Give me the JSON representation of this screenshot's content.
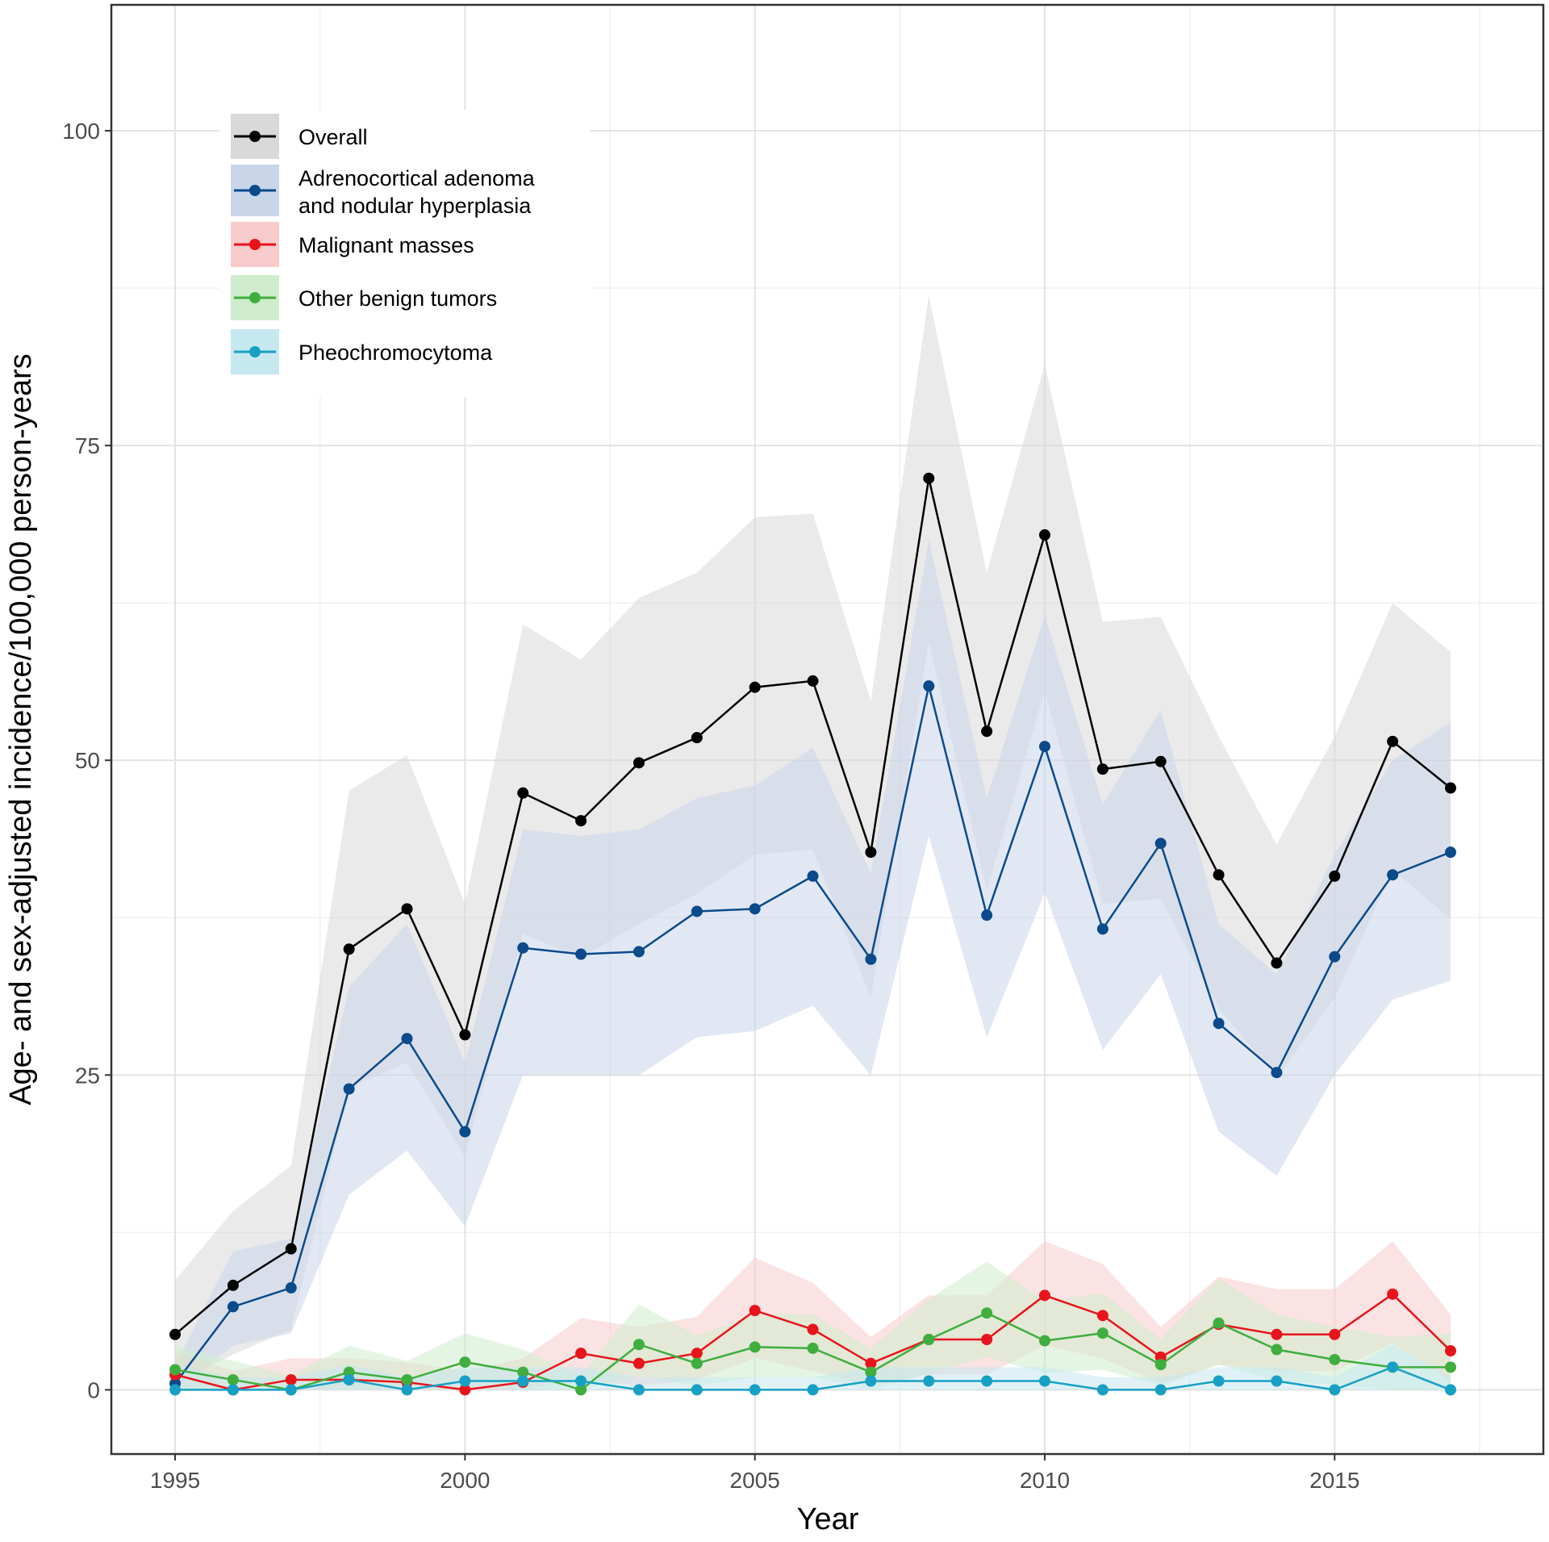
{
  "chart_data": {
    "type": "line",
    "title": "",
    "xlabel": "Year",
    "ylabel": "Age- and sex-adjusted incidence/100,000 person-years",
    "xlim": [
      1993.9,
      2018.6
    ],
    "ylim": [
      -5.1,
      110
    ],
    "xticks": [
      1995,
      2000,
      2005,
      2010,
      2015
    ],
    "yticks": [
      0,
      25,
      50,
      75,
      100
    ],
    "grid": true,
    "legend_position": "top-left",
    "x": [
      1995,
      1996,
      1997,
      1998,
      1999,
      2000,
      2001,
      2002,
      2003,
      2004,
      2005,
      2006,
      2007,
      2008,
      2009,
      2010,
      2011,
      2012,
      2013,
      2014,
      2015,
      2016,
      2017
    ],
    "series": [
      {
        "name": "Overall",
        "color": "#000000",
        "band": "#d9d9d9",
        "values": [
          4.4,
          8.3,
          11.2,
          35.0,
          38.2,
          28.2,
          47.4,
          45.2,
          49.8,
          51.8,
          55.8,
          56.3,
          42.7,
          72.4,
          52.3,
          67.9,
          49.3,
          49.9,
          40.9,
          33.9,
          40.8,
          51.5,
          47.8
        ],
        "lower": [
          0.5,
          2.8,
          4.8,
          24,
          26,
          18.5,
          36.2,
          34.3,
          37,
          39.4,
          42.5,
          42.9,
          31.1,
          59.4,
          39.7,
          55.5,
          38.6,
          39,
          30.3,
          24.8,
          31.1,
          41.3,
          37.4
        ],
        "upper": [
          8.7,
          14.2,
          17.8,
          47.6,
          50.4,
          38.6,
          60.8,
          58,
          62.9,
          64.9,
          69.3,
          69.6,
          54.7,
          86.9,
          64.9,
          81.4,
          61,
          61.4,
          51.9,
          43.3,
          51.9,
          62.5,
          58.6
        ]
      },
      {
        "name": "Adrenocortical adenoma and nodular hyperplasia",
        "legend_lines": [
          "Adrenocortical adenoma",
          "and nodular hyperplasia"
        ],
        "color": "#0b4a8b",
        "band": "#c9d6ea",
        "values": [
          0.5,
          6.6,
          8.1,
          23.9,
          27.9,
          20.5,
          35.1,
          34.6,
          34.8,
          38.0,
          38.2,
          40.8,
          34.2,
          55.9,
          37.7,
          51.1,
          36.6,
          43.4,
          29.1,
          25.2,
          34.4,
          40.9,
          42.7
        ],
        "lower": [
          0,
          3.5,
          4.5,
          15.5,
          19,
          13,
          25,
          25,
          25,
          28,
          28.5,
          30.5,
          25,
          44,
          28,
          39.5,
          27,
          33,
          20.5,
          17,
          25,
          31,
          32.5
        ],
        "upper": [
          2,
          11,
          12,
          32,
          37,
          26,
          44.5,
          44,
          44.5,
          47,
          48,
          51,
          41,
          67.5,
          47,
          61.5,
          46.5,
          54,
          37,
          33,
          42.5,
          50,
          53
        ]
      },
      {
        "name": "Malignant masses",
        "color": "#e8141b",
        "band": "#f8cccc",
        "values": [
          1.2,
          0,
          0.8,
          0.8,
          0.6,
          0,
          0.6,
          2.9,
          2.1,
          2.9,
          6.3,
          4.8,
          2.1,
          4.0,
          4.0,
          7.5,
          5.9,
          2.6,
          5.2,
          4.4,
          4.4,
          7.6,
          3.1
        ],
        "lower": [
          0,
          0,
          0,
          0,
          0,
          0,
          0,
          0.8,
          0.3,
          0.8,
          2.5,
          1.5,
          0.3,
          1.2,
          1.2,
          3.5,
          2.5,
          0.5,
          2,
          1.5,
          1.5,
          3.7,
          0.7
        ],
        "upper": [
          3,
          1.5,
          2.5,
          2.5,
          2.2,
          1.5,
          2.5,
          5.7,
          5,
          5.8,
          10.5,
          8.5,
          4.2,
          7.5,
          7.5,
          11.8,
          10,
          5,
          9,
          8,
          8,
          11.8,
          6
        ]
      },
      {
        "name": "Other benign tumors",
        "color": "#3fae3f",
        "band": "#cfeccd",
        "values": [
          1.6,
          0.8,
          0,
          1.4,
          0.8,
          2.2,
          1.4,
          0,
          3.6,
          2.1,
          3.4,
          3.3,
          1.4,
          4.0,
          6.1,
          3.9,
          4.5,
          2.0,
          5.3,
          3.2,
          2.4,
          1.8,
          1.8
        ],
        "lower": [
          0,
          0,
          0,
          0,
          0,
          0.4,
          0,
          0,
          1.1,
          0.3,
          1,
          1,
          0,
          1.3,
          2.6,
          1.3,
          1.6,
          0.3,
          2,
          0.7,
          0.4,
          0,
          0
        ],
        "upper": [
          3.5,
          2.3,
          1.2,
          3.5,
          2.3,
          4.5,
          3.2,
          1.2,
          6.8,
          4.3,
          6,
          6,
          3.3,
          7.2,
          10.2,
          7,
          7.7,
          4,
          8.8,
          6,
          5,
          4.2,
          4.5
        ]
      },
      {
        "name": "Pheochromocytoma",
        "color": "#17a0c4",
        "band": "#c6e8f1",
        "values": [
          0,
          0,
          0,
          0.8,
          0,
          0.7,
          0.7,
          0.7,
          0,
          0,
          0,
          0,
          0.7,
          0.7,
          0.7,
          0.7,
          0,
          0,
          0.7,
          0.7,
          0,
          1.8,
          0
        ],
        "lower": [
          0,
          0,
          0,
          0,
          0,
          0,
          0,
          0,
          0,
          0,
          0,
          0,
          0,
          0,
          0,
          0,
          0,
          0,
          0,
          0,
          0,
          0,
          0
        ],
        "upper": [
          2,
          1,
          1,
          2,
          1,
          1.8,
          1.8,
          1.8,
          1,
          1,
          1,
          1,
          1.8,
          1.8,
          1.8,
          1.8,
          1,
          1,
          1.8,
          1.8,
          1,
          3.6,
          1
        ]
      }
    ]
  }
}
